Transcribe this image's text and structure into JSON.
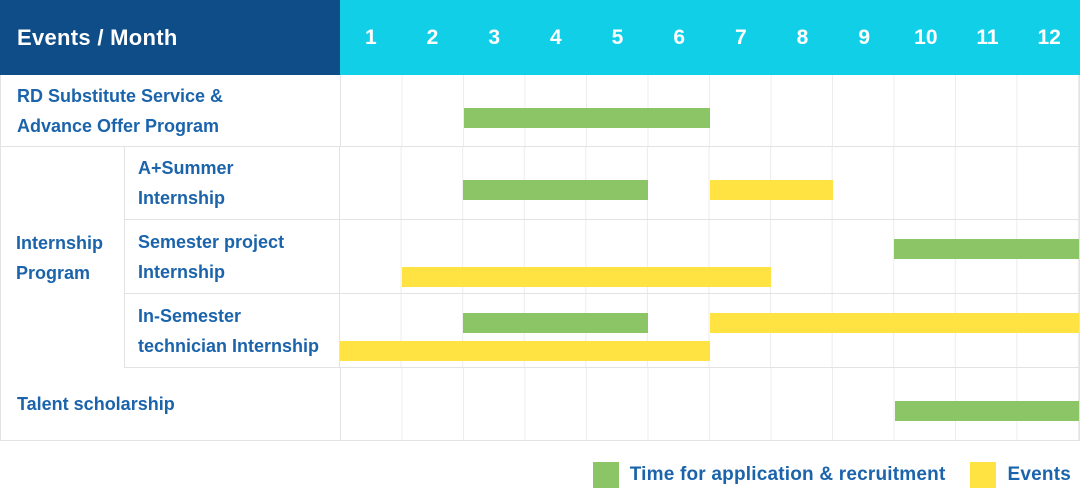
{
  "ui": {
    "header_label": "Events / Month",
    "group_label": "Internship\nProgram",
    "colors": {
      "header_bg": "#0E4D87",
      "months_bg": "#12CFE8",
      "header_text": "#FFFFFF",
      "label_text": "#1B64AB",
      "grid_line": "#E3E3E3",
      "application_green": "#8BC566",
      "events_yellow": "#FFE342"
    }
  },
  "chart_data": {
    "type": "gantt",
    "title": "Events / Month",
    "x_axis": {
      "label": "Month",
      "ticks": [
        "1",
        "2",
        "3",
        "4",
        "5",
        "6",
        "7",
        "8",
        "9",
        "10",
        "11",
        "12"
      ],
      "range": [
        1,
        12
      ]
    },
    "grid": true,
    "legend_position": "bottom-right",
    "series": {
      "application": {
        "label": "Time for application & recruitment",
        "color": "#8BC566"
      },
      "events": {
        "label": "Events",
        "color": "#FFE342"
      }
    },
    "rows": [
      {
        "label": "RD Substitute Service &\nAdvance Offer Program",
        "group": null,
        "bars": [
          {
            "series": "application",
            "start_month": 3,
            "end_month": 6,
            "lane": "single"
          }
        ]
      },
      {
        "label": "A+Summer\nInternship",
        "group": "Internship Program",
        "bars": [
          {
            "series": "application",
            "start_month": 3,
            "end_month": 5,
            "lane": "single"
          },
          {
            "series": "events",
            "start_month": 7,
            "end_month": 8,
            "lane": "single"
          }
        ]
      },
      {
        "label": "Semester project\nInternship",
        "group": "Internship Program",
        "bars": [
          {
            "series": "application",
            "start_month": 10,
            "end_month": 12,
            "lane": "top"
          },
          {
            "series": "events",
            "start_month": 2,
            "end_month": 7,
            "lane": "bottom"
          }
        ]
      },
      {
        "label": "In-Semester\ntechnician Internship",
        "group": "Internship Program",
        "bars": [
          {
            "series": "application",
            "start_month": 3,
            "end_month": 5,
            "lane": "top"
          },
          {
            "series": "events",
            "start_month": 7,
            "end_month": 12,
            "lane": "top"
          },
          {
            "series": "events",
            "start_month": 1,
            "end_month": 6,
            "lane": "bottom"
          }
        ]
      },
      {
        "label": "Talent scholarship",
        "group": null,
        "bars": [
          {
            "series": "application",
            "start_month": 10,
            "end_month": 12,
            "lane": "single"
          }
        ]
      }
    ]
  }
}
